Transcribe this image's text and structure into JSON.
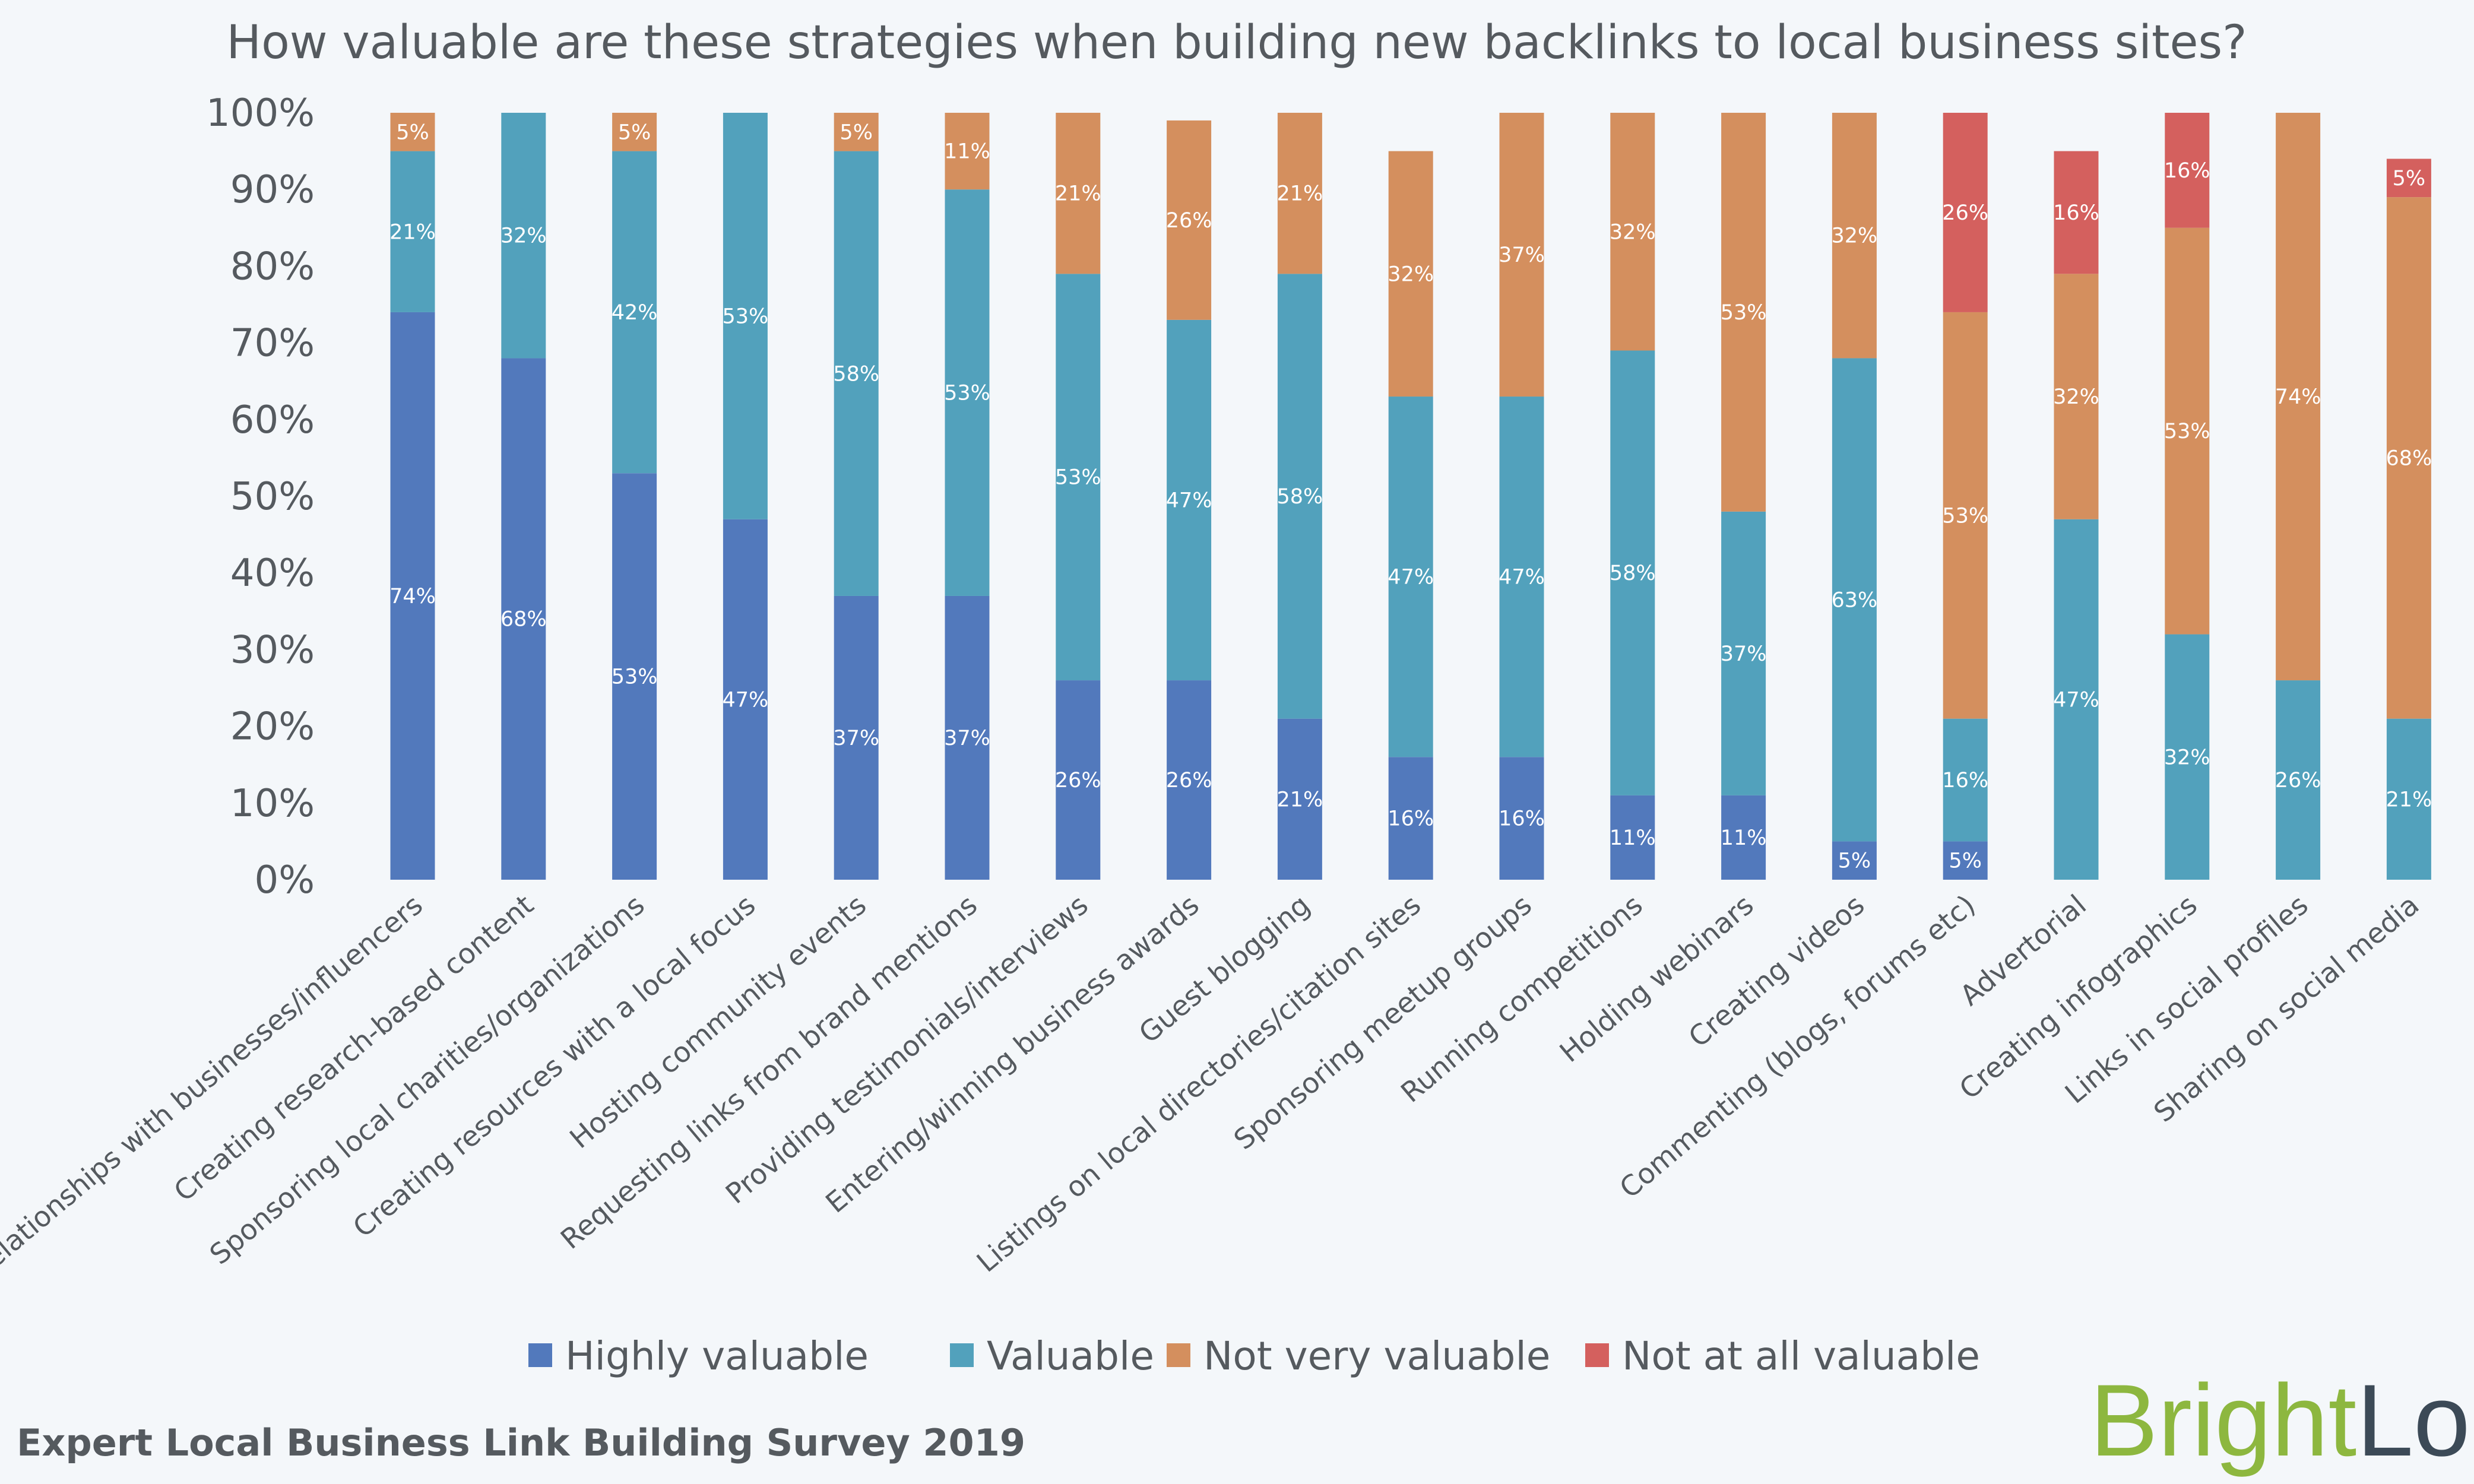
{
  "colors": {
    "Highly valuable": "#5279bc",
    "Valuable": "#52a1bc",
    "Not very valuable": "#d48f5e",
    "Not at all valuable": "#d4605e",
    "axis_text": "#555a5f",
    "background": "#f4f7fa",
    "logo_bright": "#8db73f",
    "logo_local": "#3c4a57"
  },
  "footer": "Expert Local Business Link Building Survey 2019",
  "logo": {
    "part1": "Bright",
    "part2": "Local"
  },
  "chart_data": {
    "type": "bar",
    "stacked": true,
    "percent": true,
    "title": "How valuable are these strategies when building new backlinks to local business sites?",
    "xlabel": "",
    "ylabel": "",
    "ylim": [
      0,
      100
    ],
    "yticks": [
      "0%",
      "10%",
      "20%",
      "30%",
      "40%",
      "50%",
      "60%",
      "70%",
      "80%",
      "90%",
      "100%"
    ],
    "grid": false,
    "legend_position": "bottom",
    "categories": [
      "Relationships with businesses/influencers",
      "Creating research-based content",
      "Sponsoring local charities/organizations",
      "Creating resources with a local focus",
      "Hosting community events",
      "Requesting links from brand mentions",
      "Providing testimonials/interviews",
      "Entering/winning business awards",
      "Guest blogging",
      "Listings on local directories/citation sites",
      "Sponsoring meetup groups",
      "Running competitions",
      "Holding webinars",
      "Creating videos",
      "Commenting (blogs, forums etc)",
      "Advertorial",
      "Creating infographics",
      "Links in social profiles",
      "Sharing on social media"
    ],
    "series": [
      {
        "name": "Highly valuable",
        "values": [
          74,
          68,
          53,
          47,
          37,
          37,
          26,
          26,
          21,
          16,
          16,
          11,
          11,
          5,
          5,
          0,
          0,
          0,
          0
        ],
        "labels": [
          "74%",
          "68%",
          "53%",
          "47%",
          "37%",
          "37%",
          "26%",
          "26%",
          "21%",
          "16%",
          "16%",
          "11%",
          "11%",
          "5%",
          "5%",
          "",
          "",
          "",
          ""
        ]
      },
      {
        "name": "Valuable",
        "values": [
          21,
          32,
          42,
          53,
          58,
          53,
          53,
          47,
          58,
          47,
          47,
          58,
          37,
          63,
          16,
          47,
          32,
          26,
          21
        ],
        "labels": [
          "21%",
          "32%",
          "42%",
          "53%",
          "58%",
          "53%",
          "53%",
          "47%",
          "58%",
          "47%",
          "47%",
          "58%",
          "37%",
          "63%",
          "16%",
          "47%",
          "32%",
          "26%",
          "21%"
        ]
      },
      {
        "name": "Not very valuable",
        "values": [
          5,
          0,
          5,
          0,
          5,
          11,
          21,
          26,
          21,
          32,
          37,
          32,
          53,
          32,
          53,
          32,
          53,
          74,
          68
        ],
        "labels": [
          "5%",
          "",
          "5%",
          "",
          "5%",
          "11%",
          "21%",
          "26%",
          "21%",
          "32%",
          "37%",
          "32%",
          "53%",
          "32%",
          "53%",
          "32%",
          "53%",
          "74%",
          "68%"
        ]
      },
      {
        "name": "Not at all valuable",
        "values": [
          0,
          0,
          0,
          0,
          0,
          0,
          0,
          0,
          0,
          0,
          0,
          0,
          0,
          0,
          26,
          16,
          16,
          0,
          5
        ],
        "labels": [
          "",
          "",
          "",
          "",
          "",
          "",
          "",
          "",
          "",
          "",
          "",
          "",
          "",
          "",
          "26%",
          "16%",
          "16%",
          "",
          "5%"
        ]
      }
    ]
  }
}
